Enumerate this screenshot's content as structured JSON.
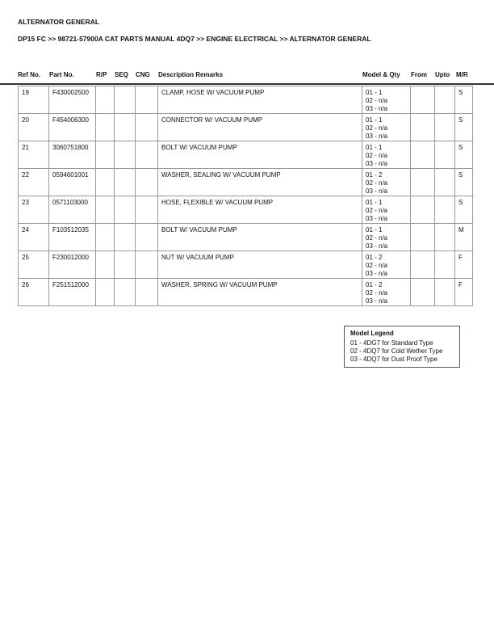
{
  "title": "ALTERNATOR GENERAL",
  "breadcrumb": "DP15 FC >> 98721-57900A CAT PARTS MANUAL 4DQ7 >> ENGINE ELECTRICAL >> ALTERNATOR GENERAL",
  "columns": [
    "Ref No.",
    "Part No.",
    "R/P",
    "SEQ",
    "CNG",
    "Description Remarks",
    "Model & Qty",
    "From",
    "Upto",
    "M/R"
  ],
  "rows": [
    {
      "ref": "19",
      "part": "F430002500",
      "desc": "CLAMP, HOSE W/ VACUUM PUMP",
      "qty": "01 - 1\n02 - n/a\n03 - n/a",
      "mr": "S"
    },
    {
      "ref": "20",
      "part": "F454006300",
      "desc": "CONNECTOR W/ VACUUM PUMP",
      "qty": "01 - 1\n02 - n/a\n03 - n/a",
      "mr": "S"
    },
    {
      "ref": "21",
      "part": "3060751800",
      "desc": "BOLT W/ VACUUM PUMP",
      "qty": "01 - 1\n02 - n/a\n03 - n/a",
      "mr": "S"
    },
    {
      "ref": "22",
      "part": "0594601001",
      "desc": "WASHER, SEALING W/ VACUUM PUMP",
      "qty": "01 - 2\n02 - n/a\n03 - n/a",
      "mr": "S"
    },
    {
      "ref": "23",
      "part": "0571103000",
      "desc": "HOSE, FLEXIBLE W/ VACUUM PUMP",
      "qty": "01 - 1\n02 - n/a\n03 - n/a",
      "mr": "S"
    },
    {
      "ref": "24",
      "part": "F103512035",
      "desc": "BOLT W/ VACUUM PUMP",
      "qty": "01 - 1\n02 - n/a\n03 - n/a",
      "mr": "M"
    },
    {
      "ref": "25",
      "part": "F230012000",
      "desc": "NUT W/ VACUUM PUMP",
      "qty": "01 - 2\n02 - n/a\n03 - n/a",
      "mr": "F"
    },
    {
      "ref": "26",
      "part": "F251512000",
      "desc": "WASHER, SPRING W/ VACUUM PUMP",
      "qty": "01 - 2\n02 - n/a\n03 - n/a",
      "mr": "F"
    }
  ],
  "legend": {
    "title": "Model Legend",
    "items": [
      "01 - 4DG7 for Standard Type",
      "02 - 4DQ7 for Cold Wether Type",
      "03 - 4DQ7 for Dust Proof Type"
    ]
  }
}
